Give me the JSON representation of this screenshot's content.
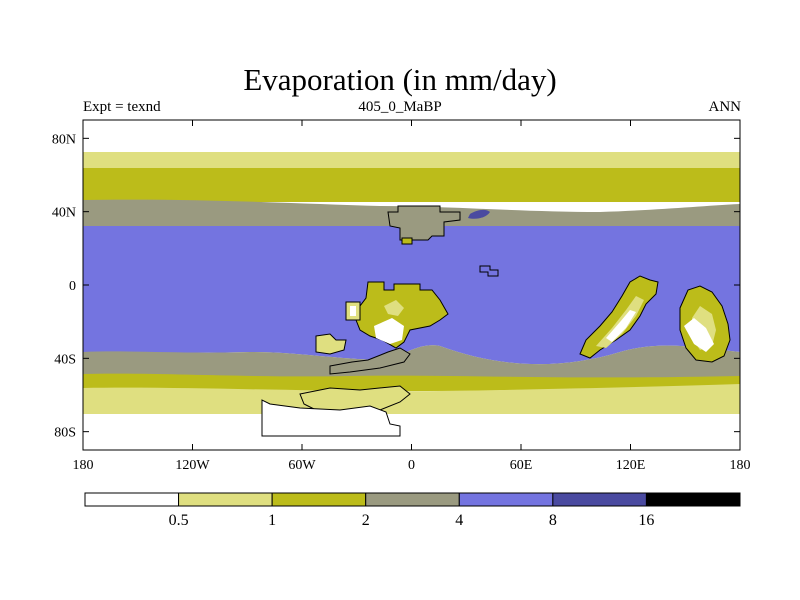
{
  "title": "Evaporation (in mm/day)",
  "left_string": "Expt = texnd",
  "center_string": "405_0_MaBP",
  "right_string": "ANN",
  "lat_labels": [
    "80N",
    "40N",
    "0",
    "40S",
    "80S"
  ],
  "lon_labels": [
    "180",
    "120W",
    "60W",
    "0",
    "60E",
    "120E",
    "180"
  ],
  "legend": {
    "colors": [
      "#ffffff",
      "#dfdf80",
      "#bcbc1a",
      "#9a9a80",
      "#7474e0",
      "#4a4aa0",
      "#000000"
    ],
    "labels": [
      "0.5",
      "1",
      "2",
      "4",
      "8",
      "16"
    ]
  },
  "chart_data": {
    "type": "heatmap",
    "title": "Evaporation (in mm/day)",
    "variable": "Evaporation",
    "units": "mm/day",
    "experiment": "texnd",
    "period": "405_0_MaBP",
    "season": "ANN",
    "lon_range": [
      -180,
      180
    ],
    "lat_range": [
      -90,
      90
    ],
    "contour_levels": [
      0.5,
      1,
      2,
      4,
      8,
      16
    ],
    "zonal_bands": [
      {
        "lat_from": 90,
        "lat_to": 76,
        "value_range": "<0.5"
      },
      {
        "lat_from": 76,
        "lat_to": 70,
        "value_range": "0.5-1"
      },
      {
        "lat_from": 70,
        "lat_to": 48,
        "value_range": "1-2"
      },
      {
        "lat_from": 48,
        "lat_to": 34,
        "value_range": "2-4"
      },
      {
        "lat_from": 34,
        "lat_to": -38,
        "value_range": "4-8"
      },
      {
        "lat_from": -38,
        "lat_to": -52,
        "value_range": "2-4"
      },
      {
        "lat_from": -52,
        "lat_to": -62,
        "value_range": "1-2"
      },
      {
        "lat_from": -62,
        "lat_to": -70,
        "value_range": "0.5-1"
      },
      {
        "lat_from": -70,
        "lat_to": -90,
        "value_range": "<0.5"
      }
    ]
  }
}
